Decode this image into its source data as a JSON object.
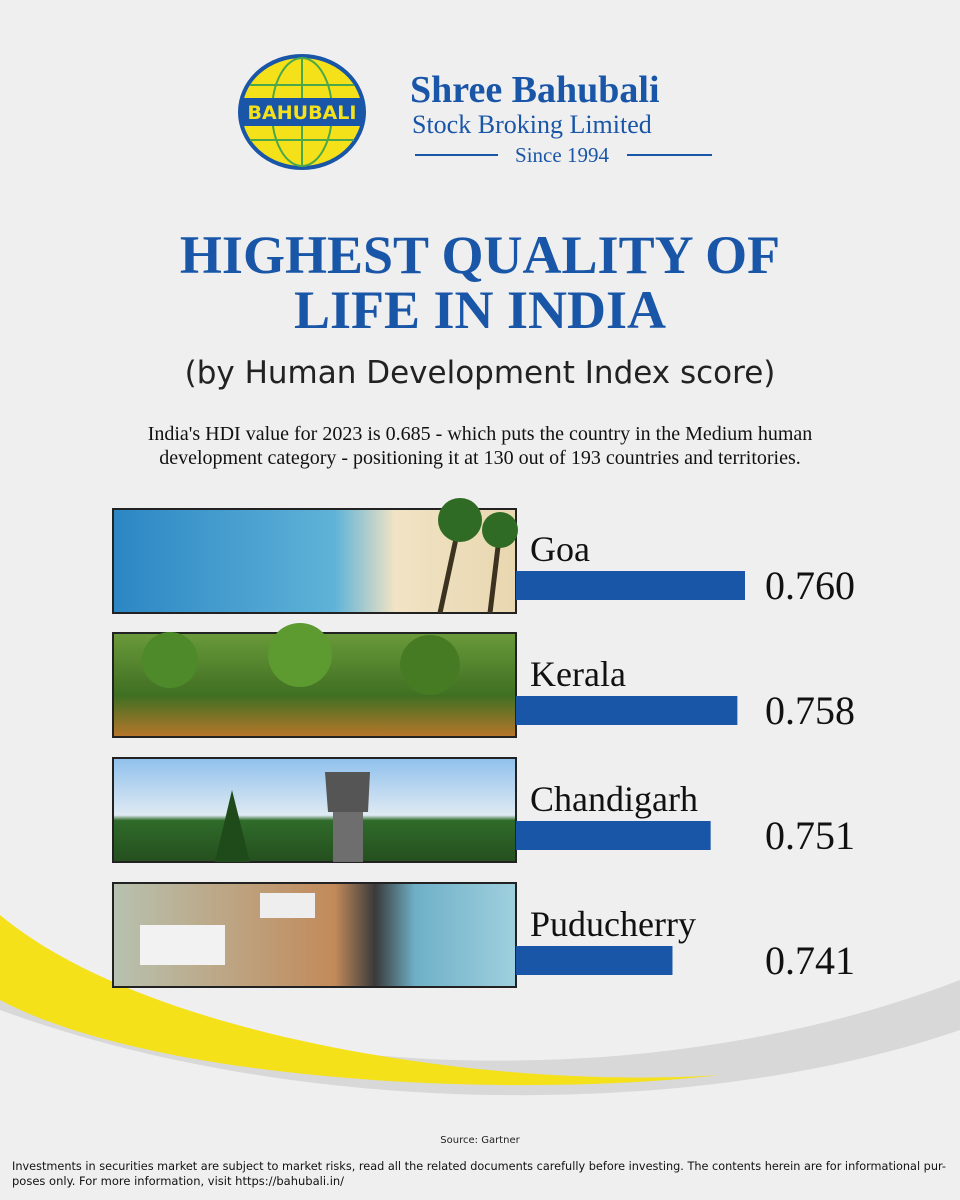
{
  "header": {
    "logo_text": "BAHUBALI",
    "company": "Shree Bahubali",
    "tagline": "Stock Broking Limited",
    "since": "Since 1994"
  },
  "chart_data": {
    "type": "bar",
    "orientation": "horizontal",
    "title": [
      "HIGHEST QUALITY OF",
      "LIFE IN INDIA"
    ],
    "subtitle": "(by Human Development Index score)",
    "note": [
      "India's HDI value for 2023 is 0.685 - which puts the country in the Medium human",
      "development category - positioning it at 130 out of 193 countries and territories."
    ],
    "categories": [
      "Goa",
      "Kerala",
      "Chandigarh",
      "Puducherry"
    ],
    "values": [
      0.76,
      0.758,
      0.751,
      0.741
    ],
    "value_labels": [
      "0.760",
      "0.758",
      "0.751",
      "0.741"
    ],
    "color": "#1a56a8",
    "xlim": [
      0.7,
      0.76
    ]
  },
  "footer": {
    "source": "Source: Gartner",
    "disclaimer": [
      "Investments in securities market are subject to market risks, read all the related documents carefully before investing. The contents herein are for informational pur-",
      "poses only. For more information, visit https://bahubali.in/"
    ]
  }
}
